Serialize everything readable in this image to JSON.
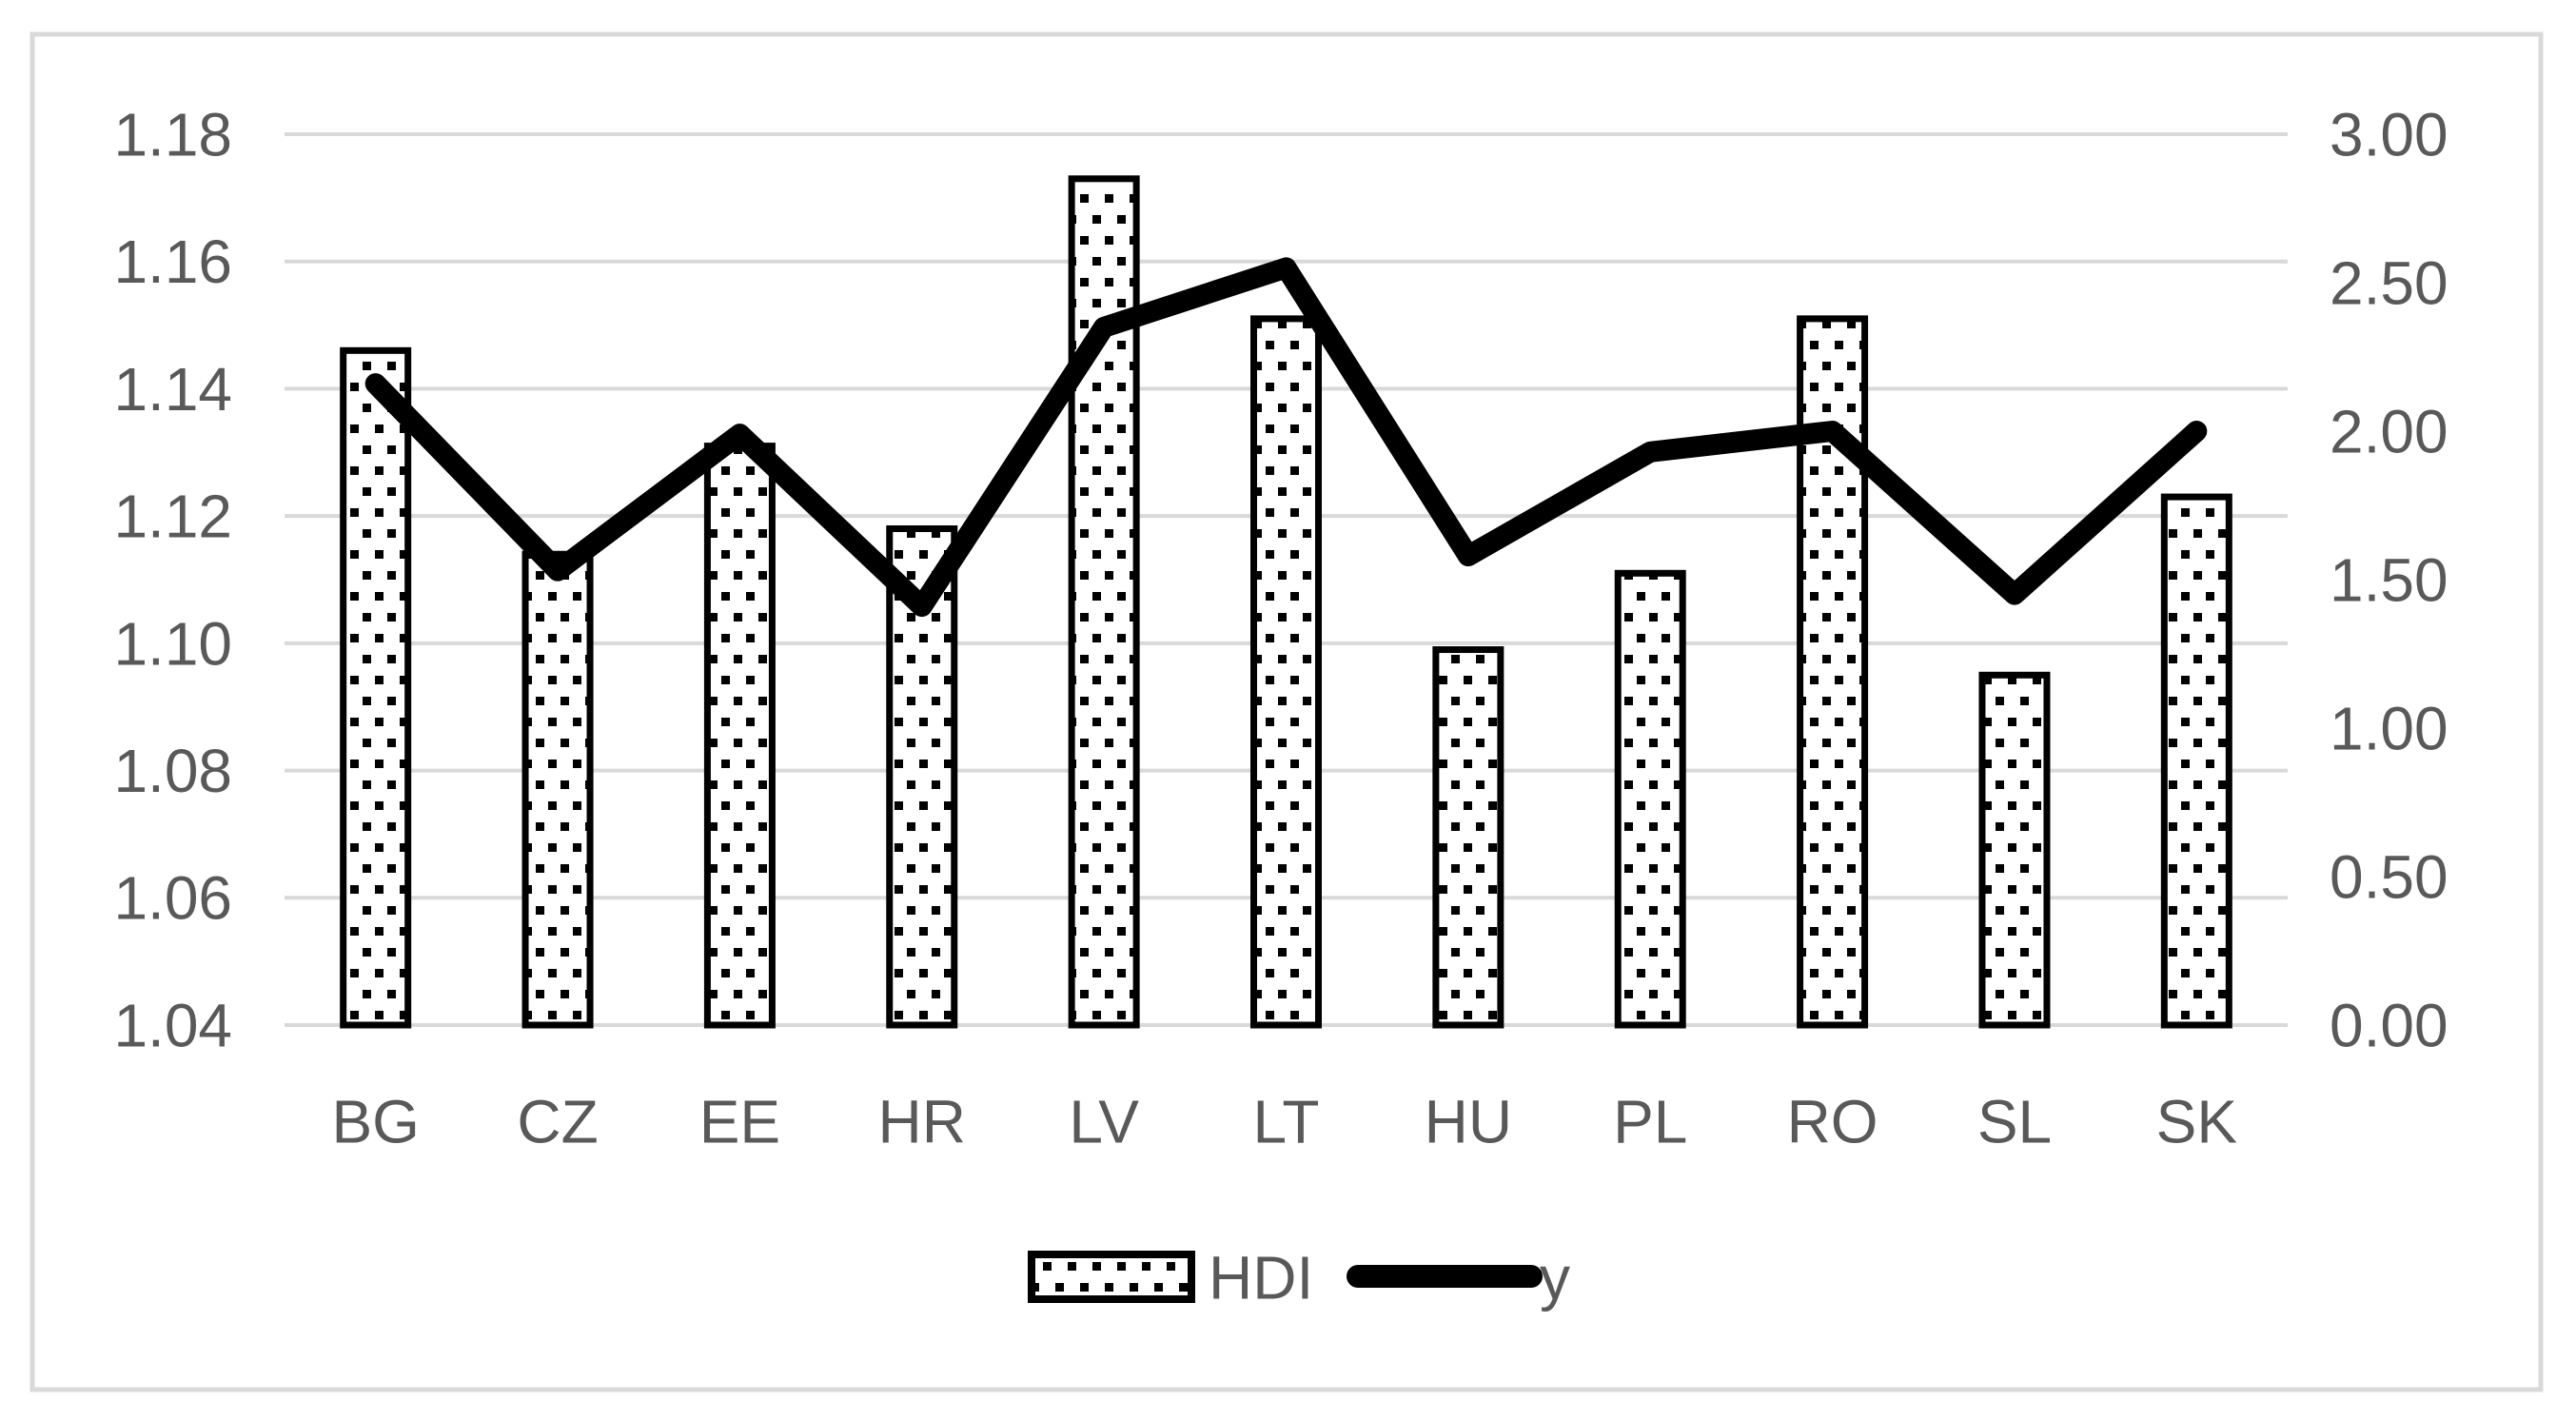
{
  "chart_data": {
    "type": "combo-bar-line-dual-axis",
    "categories": [
      "BG",
      "CZ",
      "EE",
      "HR",
      "LV",
      "LT",
      "HU",
      "PL",
      "RO",
      "SL",
      "SK"
    ],
    "series": [
      {
        "name": "HDI",
        "type": "bar",
        "axis": "left",
        "values": [
          1.146,
          1.114,
          1.131,
          1.118,
          1.173,
          1.151,
          1.099,
          1.111,
          1.151,
          1.095,
          1.123
        ]
      },
      {
        "name": "y",
        "type": "line",
        "axis": "right",
        "values": [
          2.16,
          1.53,
          1.99,
          1.41,
          2.35,
          2.55,
          1.58,
          1.93,
          2.0,
          1.45,
          2.0
        ]
      }
    ],
    "left_axis": {
      "min": 1.04,
      "max": 1.18,
      "tick_step": 0.02,
      "tick_labels": [
        "1.18",
        "1.16",
        "1.14",
        "1.12",
        "1.10",
        "1.08",
        "1.06",
        "1.04"
      ]
    },
    "right_axis": {
      "min": 0.0,
      "max": 3.0,
      "tick_step": 0.5,
      "tick_labels": [
        "3.00",
        "2.50",
        "2.00",
        "1.50",
        "1.00",
        "0.50",
        "0.00"
      ]
    },
    "legend": [
      {
        "label": "HDI",
        "swatch": "dotted-pattern-bar"
      },
      {
        "label": "y",
        "swatch": "thick-black-line"
      }
    ],
    "legend_position": "bottom-center",
    "grid": "horizontal-gridlines-on"
  },
  "colors": {
    "background": "#FFFFFF",
    "frame_border": "#D9D9D9",
    "gridline": "#D9D9D9",
    "axis_text": "#595959",
    "bar_border": "#000000",
    "bar_dot_fill": "#000000",
    "bar_background": "#FFFFFF",
    "line_series": "#000000",
    "legend_text": "#595959"
  }
}
